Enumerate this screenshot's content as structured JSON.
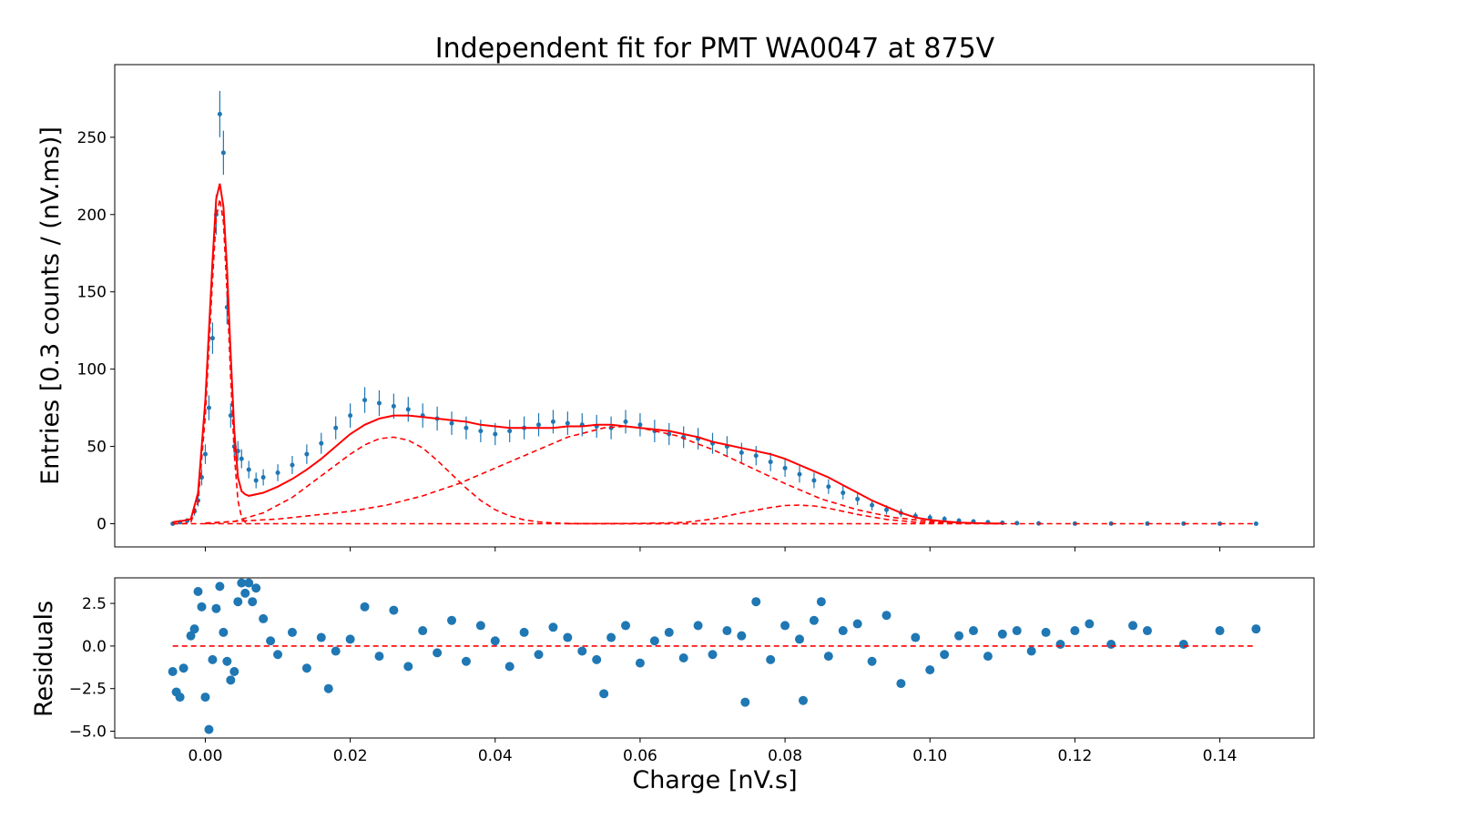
{
  "chart_data": [
    {
      "type": "scatter",
      "title": "Independent fit for PMT WA0047 at 875V",
      "xlabel": "",
      "ylabel": "Entries [0.3 counts / (nV.ms)]",
      "xlim": [
        -0.0125,
        0.153
      ],
      "ylim": [
        -15,
        297
      ],
      "xticks": [
        0.0,
        0.02,
        0.04,
        0.06,
        0.08,
        0.1,
        0.12,
        0.14
      ],
      "yticks": [
        0,
        50,
        100,
        150,
        200,
        250
      ],
      "ytick_labels": [
        "0",
        "50",
        "100",
        "150",
        "200",
        "250"
      ],
      "grid": false,
      "series": [
        {
          "kind": "data points with error bars",
          "color": "#1f77b4",
          "x": [
            -0.0045,
            -0.0035,
            -0.0025,
            -0.0015,
            -0.001,
            -0.0005,
            0.0,
            0.0005,
            0.001,
            0.0015,
            0.002,
            0.0025,
            0.003,
            0.0035,
            0.004,
            0.0045,
            0.005,
            0.006,
            0.007,
            0.008,
            0.01,
            0.012,
            0.014,
            0.016,
            0.018,
            0.02,
            0.022,
            0.024,
            0.026,
            0.028,
            0.03,
            0.032,
            0.034,
            0.036,
            0.038,
            0.04,
            0.042,
            0.044,
            0.046,
            0.048,
            0.05,
            0.052,
            0.054,
            0.056,
            0.058,
            0.06,
            0.062,
            0.064,
            0.066,
            0.068,
            0.07,
            0.072,
            0.074,
            0.076,
            0.078,
            0.08,
            0.082,
            0.084,
            0.086,
            0.088,
            0.09,
            0.092,
            0.094,
            0.096,
            0.098,
            0.1,
            0.102,
            0.104,
            0.106,
            0.108,
            0.11,
            0.112,
            0.115,
            0.12,
            0.125,
            0.13,
            0.135,
            0.14,
            0.145
          ],
          "y": [
            0,
            1,
            2,
            8,
            15,
            30,
            45,
            75,
            120,
            200,
            265,
            240,
            140,
            70,
            50,
            47,
            42,
            35,
            28,
            30,
            33,
            38,
            45,
            52,
            62,
            70,
            80,
            78,
            76,
            74,
            70,
            68,
            65,
            62,
            60,
            58,
            60,
            62,
            64,
            66,
            65,
            64,
            63,
            62,
            66,
            64,
            60,
            58,
            56,
            55,
            52,
            50,
            46,
            44,
            40,
            36,
            32,
            28,
            24,
            20,
            16,
            12,
            9,
            7,
            5,
            4,
            3,
            2,
            1.5,
            1,
            0.6,
            0.4,
            0.2,
            0.1,
            0.1,
            0.05,
            0.05,
            0.02,
            0.02
          ]
        },
        {
          "kind": "total fit",
          "color": "#ff0000",
          "style": "solid",
          "x": [
            -0.0045,
            -0.003,
            -0.002,
            -0.001,
            0.0,
            0.001,
            0.0015,
            0.002,
            0.0025,
            0.003,
            0.0035,
            0.004,
            0.0045,
            0.005,
            0.0055,
            0.006,
            0.008,
            0.01,
            0.012,
            0.014,
            0.016,
            0.018,
            0.02,
            0.022,
            0.024,
            0.026,
            0.028,
            0.03,
            0.032,
            0.034,
            0.036,
            0.038,
            0.04,
            0.042,
            0.044,
            0.046,
            0.048,
            0.05,
            0.052,
            0.054,
            0.056,
            0.058,
            0.06,
            0.062,
            0.064,
            0.066,
            0.068,
            0.07,
            0.072,
            0.074,
            0.076,
            0.078,
            0.08,
            0.082,
            0.084,
            0.086,
            0.088,
            0.09,
            0.092,
            0.094,
            0.096,
            0.098,
            0.1,
            0.102,
            0.104,
            0.106,
            0.108,
            0.11
          ],
          "y": [
            1,
            2,
            3,
            20,
            80,
            170,
            210,
            220,
            205,
            165,
            110,
            60,
            30,
            21,
            19,
            18,
            20,
            24,
            29,
            35,
            42,
            50,
            58,
            64,
            68,
            70,
            70,
            69,
            68,
            67,
            66,
            64,
            63,
            62,
            62,
            62,
            62,
            63,
            63,
            64,
            64,
            63,
            62,
            61,
            60,
            58,
            56,
            53,
            51,
            49,
            47,
            45,
            42,
            38,
            34,
            30,
            25,
            20,
            15,
            11,
            7,
            4,
            2.5,
            1.5,
            0.8,
            0.4,
            0.2,
            0.1
          ]
        },
        {
          "kind": "pedestal component",
          "color": "#ff0000",
          "style": "dashed",
          "x": [
            -0.0045,
            -0.003,
            -0.002,
            -0.001,
            0.0,
            0.001,
            0.0015,
            0.002,
            0.0025,
            0.003,
            0.0035,
            0.004,
            0.0045,
            0.005,
            0.0055,
            0.006
          ],
          "y": [
            0,
            0,
            1,
            14,
            70,
            158,
            198,
            210,
            195,
            150,
            95,
            45,
            15,
            4,
            1,
            0
          ]
        },
        {
          "kind": "1 p.e. component",
          "color": "#ff0000",
          "style": "dashed",
          "x": [
            0.0,
            0.004,
            0.008,
            0.012,
            0.016,
            0.02,
            0.022,
            0.024,
            0.026,
            0.028,
            0.03,
            0.032,
            0.034,
            0.036,
            0.038,
            0.04,
            0.042,
            0.044,
            0.046,
            0.048,
            0.05,
            0.054,
            0.058,
            0.062,
            0.066,
            0.07
          ],
          "y": [
            0,
            1.5,
            7,
            17,
            31,
            45,
            51,
            55,
            56,
            54,
            49,
            41,
            32,
            23,
            15,
            9,
            5,
            2.5,
            1.2,
            0.5,
            0.2,
            0.05,
            0,
            0,
            0,
            0
          ]
        },
        {
          "kind": "2 p.e. component",
          "color": "#ff0000",
          "style": "dashed",
          "x": [
            0.0,
            0.01,
            0.02,
            0.025,
            0.03,
            0.035,
            0.04,
            0.045,
            0.05,
            0.055,
            0.058,
            0.06,
            0.065,
            0.07,
            0.075,
            0.08,
            0.085,
            0.09,
            0.095,
            0.1,
            0.105,
            0.11
          ],
          "y": [
            0.5,
            3,
            8,
            12,
            18,
            26,
            36,
            46,
            56,
            62,
            63,
            62,
            57,
            48,
            37,
            26,
            16,
            9,
            4,
            1.5,
            0.4,
            0
          ]
        },
        {
          "kind": "3 p.e. component",
          "color": "#ff0000",
          "style": "dashed",
          "x": [
            0.05,
            0.06,
            0.066,
            0.07,
            0.074,
            0.078,
            0.08,
            0.082,
            0.084,
            0.086,
            0.09,
            0.094,
            0.098,
            0.102,
            0.106
          ],
          "y": [
            0,
            0.2,
            0.8,
            3,
            7,
            10.5,
            11.8,
            12,
            11.5,
            10,
            6,
            2.8,
            1,
            0.3,
            0
          ]
        },
        {
          "kind": "baseline component",
          "color": "#ff0000",
          "style": "dashed",
          "x": [
            -0.0045,
            0.145
          ],
          "y": [
            0,
            0
          ]
        }
      ]
    },
    {
      "type": "scatter",
      "xlabel": "Charge [nV.s]",
      "ylabel": "Residuals",
      "xlim": [
        -0.0125,
        0.153
      ],
      "ylim": [
        -5.4,
        4.0
      ],
      "xticks": [
        0.0,
        0.02,
        0.04,
        0.06,
        0.08,
        0.1,
        0.12,
        0.14
      ],
      "xtick_labels": [
        "0.00",
        "0.02",
        "0.04",
        "0.06",
        "0.08",
        "0.10",
        "0.12",
        "0.14"
      ],
      "yticks": [
        -5.0,
        -2.5,
        0.0,
        2.5
      ],
      "ytick_labels": [
        "−5.0",
        "−2.5",
        "0.0",
        "2.5"
      ],
      "grid": false,
      "series": [
        {
          "kind": "residual points",
          "color": "#1f77b4",
          "x": [
            -0.0045,
            -0.004,
            -0.0035,
            -0.003,
            -0.002,
            -0.0015,
            -0.001,
            -0.0005,
            0.0,
            0.0005,
            0.001,
            0.0015,
            0.002,
            0.0025,
            0.003,
            0.0035,
            0.004,
            0.0045,
            0.005,
            0.0055,
            0.006,
            0.0065,
            0.007,
            0.008,
            0.009,
            0.01,
            0.012,
            0.014,
            0.016,
            0.017,
            0.018,
            0.02,
            0.022,
            0.024,
            0.026,
            0.028,
            0.03,
            0.032,
            0.034,
            0.036,
            0.038,
            0.04,
            0.042,
            0.044,
            0.046,
            0.048,
            0.05,
            0.052,
            0.054,
            0.055,
            0.056,
            0.058,
            0.06,
            0.062,
            0.064,
            0.066,
            0.068,
            0.07,
            0.072,
            0.074,
            0.0745,
            0.076,
            0.078,
            0.08,
            0.082,
            0.0825,
            0.084,
            0.085,
            0.086,
            0.088,
            0.09,
            0.092,
            0.094,
            0.096,
            0.098,
            0.1,
            0.102,
            0.104,
            0.106,
            0.108,
            0.11,
            0.112,
            0.114,
            0.116,
            0.118,
            0.12,
            0.122,
            0.125,
            0.128,
            0.13,
            0.135,
            0.14,
            0.145
          ],
          "y": [
            -1.5,
            -2.7,
            -3.0,
            -1.3,
            0.6,
            1.0,
            3.2,
            2.3,
            -3.0,
            -4.9,
            -0.8,
            2.2,
            3.5,
            0.8,
            -0.9,
            -2.0,
            -1.5,
            2.6,
            3.7,
            3.1,
            3.7,
            2.6,
            3.4,
            1.6,
            0.3,
            -0.5,
            0.8,
            -1.3,
            0.5,
            -2.5,
            -0.3,
            0.4,
            2.3,
            -0.6,
            2.1,
            -1.2,
            0.9,
            -0.4,
            1.5,
            -0.9,
            1.2,
            0.3,
            -1.2,
            0.8,
            -0.5,
            1.1,
            0.5,
            -0.3,
            -0.8,
            -2.8,
            0.5,
            1.2,
            -1.0,
            0.3,
            0.8,
            -0.7,
            1.2,
            -0.5,
            0.9,
            0.6,
            -3.3,
            2.6,
            -0.8,
            1.2,
            0.4,
            -3.2,
            1.5,
            2.6,
            -0.6,
            0.9,
            1.3,
            -0.9,
            1.8,
            -2.2,
            0.5,
            -1.4,
            -0.5,
            0.6,
            0.9,
            -0.6,
            0.7,
            0.9,
            -0.3,
            0.8,
            0.1,
            0.9,
            1.3,
            0.1,
            1.2,
            0.9,
            0.1,
            0.9,
            1.0
          ]
        },
        {
          "kind": "zero reference line",
          "color": "#ff0000",
          "style": "dashed",
          "x": [
            -0.0045,
            0.145
          ],
          "y": [
            0,
            0
          ]
        }
      ]
    }
  ]
}
